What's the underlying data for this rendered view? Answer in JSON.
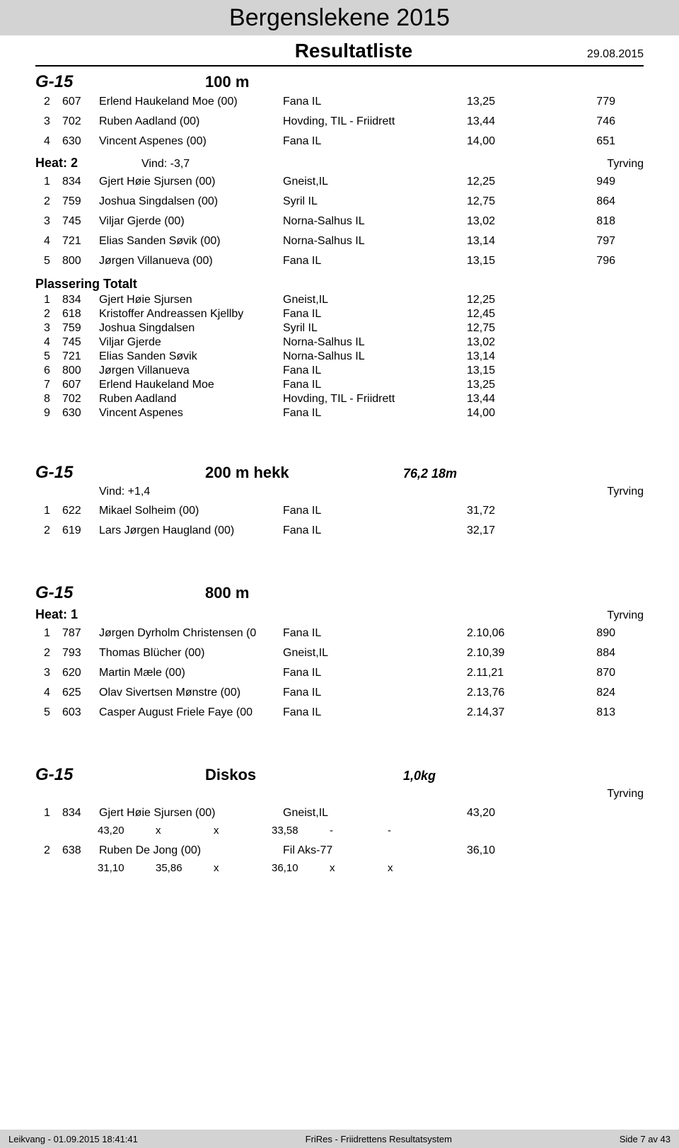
{
  "header": {
    "title": "Bergenslekene 2015",
    "subtitle": "Resultatliste",
    "date": "29.08.2015"
  },
  "section_100m": {
    "category": "G-15",
    "event": "100 m",
    "first_rows": [
      {
        "place": "2",
        "bib": "607",
        "name": "Erlend Haukeland Moe (00)",
        "club": "Fana IL",
        "res": "13,25",
        "pts": "779"
      },
      {
        "place": "3",
        "bib": "702",
        "name": "Ruben Aadland (00)",
        "club": "Hovding, TIL - Friidrett",
        "res": "13,44",
        "pts": "746"
      },
      {
        "place": "4",
        "bib": "630",
        "name": "Vincent Aspenes (00)",
        "club": "Fana IL",
        "res": "14,00",
        "pts": "651"
      }
    ],
    "heat": {
      "label": "Heat: 2",
      "wind": "Vind: -3,7",
      "right": "Tyrving",
      "rows": [
        {
          "place": "1",
          "bib": "834",
          "name": "Gjert Høie Sjursen (00)",
          "club": "Gneist,IL",
          "res": "12,25",
          "pts": "949"
        },
        {
          "place": "2",
          "bib": "759",
          "name": "Joshua Singdalsen (00)",
          "club": "Syril IL",
          "res": "12,75",
          "pts": "864"
        },
        {
          "place": "3",
          "bib": "745",
          "name": "Viljar Gjerde (00)",
          "club": "Norna-Salhus IL",
          "res": "13,02",
          "pts": "818"
        },
        {
          "place": "4",
          "bib": "721",
          "name": "Elias Sanden Søvik (00)",
          "club": "Norna-Salhus IL",
          "res": "13,14",
          "pts": "797"
        },
        {
          "place": "5",
          "bib": "800",
          "name": "Jørgen Villanueva (00)",
          "club": "Fana IL",
          "res": "13,15",
          "pts": "796"
        }
      ]
    },
    "totals": {
      "title": "Plassering Totalt",
      "rows": [
        {
          "place": "1",
          "bib": "834",
          "name": "Gjert Høie Sjursen",
          "club": "Gneist,IL",
          "res": "12,25"
        },
        {
          "place": "2",
          "bib": "618",
          "name": "Kristoffer Andreassen Kjellby",
          "club": "Fana IL",
          "res": "12,45"
        },
        {
          "place": "3",
          "bib": "759",
          "name": "Joshua Singdalsen",
          "club": "Syril IL",
          "res": "12,75"
        },
        {
          "place": "4",
          "bib": "745",
          "name": "Viljar Gjerde",
          "club": "Norna-Salhus IL",
          "res": "13,02"
        },
        {
          "place": "5",
          "bib": "721",
          "name": "Elias Sanden Søvik",
          "club": "Norna-Salhus IL",
          "res": "13,14"
        },
        {
          "place": "6",
          "bib": "800",
          "name": "Jørgen Villanueva",
          "club": "Fana IL",
          "res": "13,15"
        },
        {
          "place": "7",
          "bib": "607",
          "name": "Erlend Haukeland Moe",
          "club": "Fana IL",
          "res": "13,25"
        },
        {
          "place": "8",
          "bib": "702",
          "name": "Ruben Aadland",
          "club": "Hovding, TIL - Friidrett",
          "res": "13,44"
        },
        {
          "place": "9",
          "bib": "630",
          "name": "Vincent Aspenes",
          "club": "Fana IL",
          "res": "14,00"
        }
      ]
    }
  },
  "section_200mh": {
    "category": "G-15",
    "event": "200 m hekk",
    "param": "76,2 18m",
    "wind": "Vind: +1,4",
    "right": "Tyrving",
    "rows": [
      {
        "place": "1",
        "bib": "622",
        "name": "Mikael Solheim (00)",
        "club": "Fana IL",
        "res": "31,72",
        "pts": ""
      },
      {
        "place": "2",
        "bib": "619",
        "name": "Lars Jørgen Haugland (00)",
        "club": "Fana IL",
        "res": "32,17",
        "pts": ""
      }
    ]
  },
  "section_800m": {
    "category": "G-15",
    "event": "800 m",
    "heat": {
      "label": "Heat: 1",
      "right": "Tyrving",
      "rows": [
        {
          "place": "1",
          "bib": "787",
          "name": "Jørgen Dyrholm Christensen (0",
          "club": "Fana IL",
          "res": "2.10,06",
          "pts": "890"
        },
        {
          "place": "2",
          "bib": "793",
          "name": "Thomas Blücher (00)",
          "club": "Gneist,IL",
          "res": "2.10,39",
          "pts": "884"
        },
        {
          "place": "3",
          "bib": "620",
          "name": "Martin Mæle (00)",
          "club": "Fana IL",
          "res": "2.11,21",
          "pts": "870"
        },
        {
          "place": "4",
          "bib": "625",
          "name": "Olav Sivertsen Mønstre (00)",
          "club": "Fana IL",
          "res": "2.13,76",
          "pts": "824"
        },
        {
          "place": "5",
          "bib": "603",
          "name": "Casper August Friele Faye (00",
          "club": "Fana IL",
          "res": "2.14,37",
          "pts": "813"
        }
      ]
    }
  },
  "section_diskos": {
    "category": "G-15",
    "event": "Diskos",
    "param": "1,0kg",
    "right": "Tyrving",
    "rows": [
      {
        "place": "1",
        "bib": "834",
        "name": "Gjert Høie Sjursen (00)",
        "club": "Gneist,IL",
        "res": "43,20",
        "pts": "",
        "marks": [
          "43,20",
          "x",
          "x",
          "33,58",
          "-",
          "-"
        ]
      },
      {
        "place": "2",
        "bib": "638",
        "name": "Ruben De Jong (00)",
        "club": "Fil Aks-77",
        "res": "36,10",
        "pts": "",
        "marks": [
          "31,10",
          "35,86",
          "x",
          "36,10",
          "x",
          "x"
        ]
      }
    ]
  },
  "footer": {
    "left": "Leikvang - 01.09.2015 18:41:41",
    "center": "FriRes - Friidrettens Resultatsystem",
    "right": "Side 7 av 43"
  }
}
